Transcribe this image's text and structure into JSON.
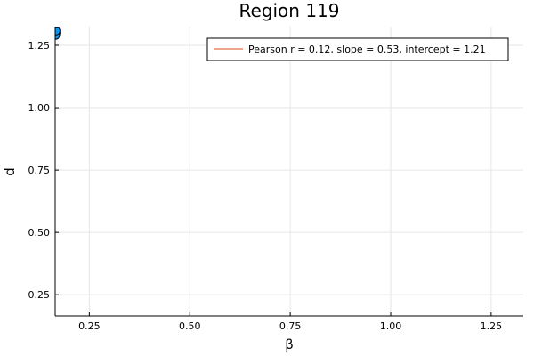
{
  "chart_data": {
    "type": "scatter",
    "title": "Region 119",
    "xlabel": "β",
    "ylabel": "d",
    "xlim": [
      0.165,
      1.33
    ],
    "ylim": [
      0.165,
      1.325
    ],
    "xticks": [
      0.25,
      0.5,
      0.75,
      1.0,
      1.25
    ],
    "xtick_labels": [
      "0.25",
      "0.50",
      "0.75",
      "1.00",
      "1.25"
    ],
    "yticks": [
      0.25,
      0.5,
      0.75,
      1.0,
      1.25
    ],
    "ytick_labels": [
      "0.25",
      "0.50",
      "0.75",
      "1.00",
      "1.25"
    ],
    "grid": true,
    "legend_position": "top-right",
    "series": [
      {
        "kind": "points",
        "color": "#009af9",
        "points": [
          {
            "x": 0.165,
            "y": 1.295
          },
          {
            "x": 0.166,
            "y": 1.305
          },
          {
            "x": 0.165,
            "y": 1.312
          },
          {
            "x": 0.167,
            "y": 1.3
          },
          {
            "x": 0.166,
            "y": 1.29
          },
          {
            "x": 0.165,
            "y": 1.318
          },
          {
            "x": 0.167,
            "y": 1.308
          }
        ]
      },
      {
        "kind": "fit-line",
        "name": "Pearson r = 0.12, slope = 0.53, intercept = 1.21",
        "color": "#e26f46",
        "slope": 0.53,
        "intercept": 1.21
      }
    ]
  }
}
